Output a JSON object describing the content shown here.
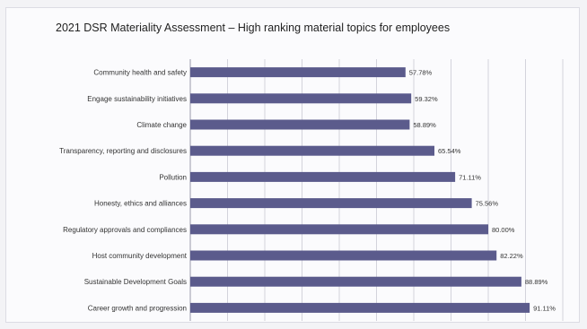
{
  "chart_data": {
    "type": "bar",
    "orientation": "horizontal",
    "title": "2021 DSR Materiality Assessment – High ranking material topics for employees",
    "xlabel": "",
    "ylabel": "",
    "xlim": [
      0,
      100
    ],
    "grid": true,
    "legend": "none",
    "categories": [
      "Community health and safety",
      "Engage sustainability initiatives",
      "Climate change",
      "Transparency, reporting and disclosures",
      "Pollution",
      "Honesty, ethics and alliances",
      "Regulatory approvals and compliances",
      "Host community development",
      "Sustainable Development Goals",
      "Career growth and progression"
    ],
    "values": [
      57.78,
      59.32,
      58.89,
      65.54,
      71.11,
      75.56,
      80.0,
      82.22,
      88.89,
      91.11
    ],
    "value_labels": [
      "57.78%",
      "59.32%",
      "58.89%",
      "65.54%",
      "71.11%",
      "75.56%",
      "80.00%",
      "82.22%",
      "88.89%",
      "91.11%"
    ],
    "colors": {
      "bar": "#5b5b8c",
      "grid": "#d3d3dc",
      "axis": "#9a9aaa"
    }
  }
}
